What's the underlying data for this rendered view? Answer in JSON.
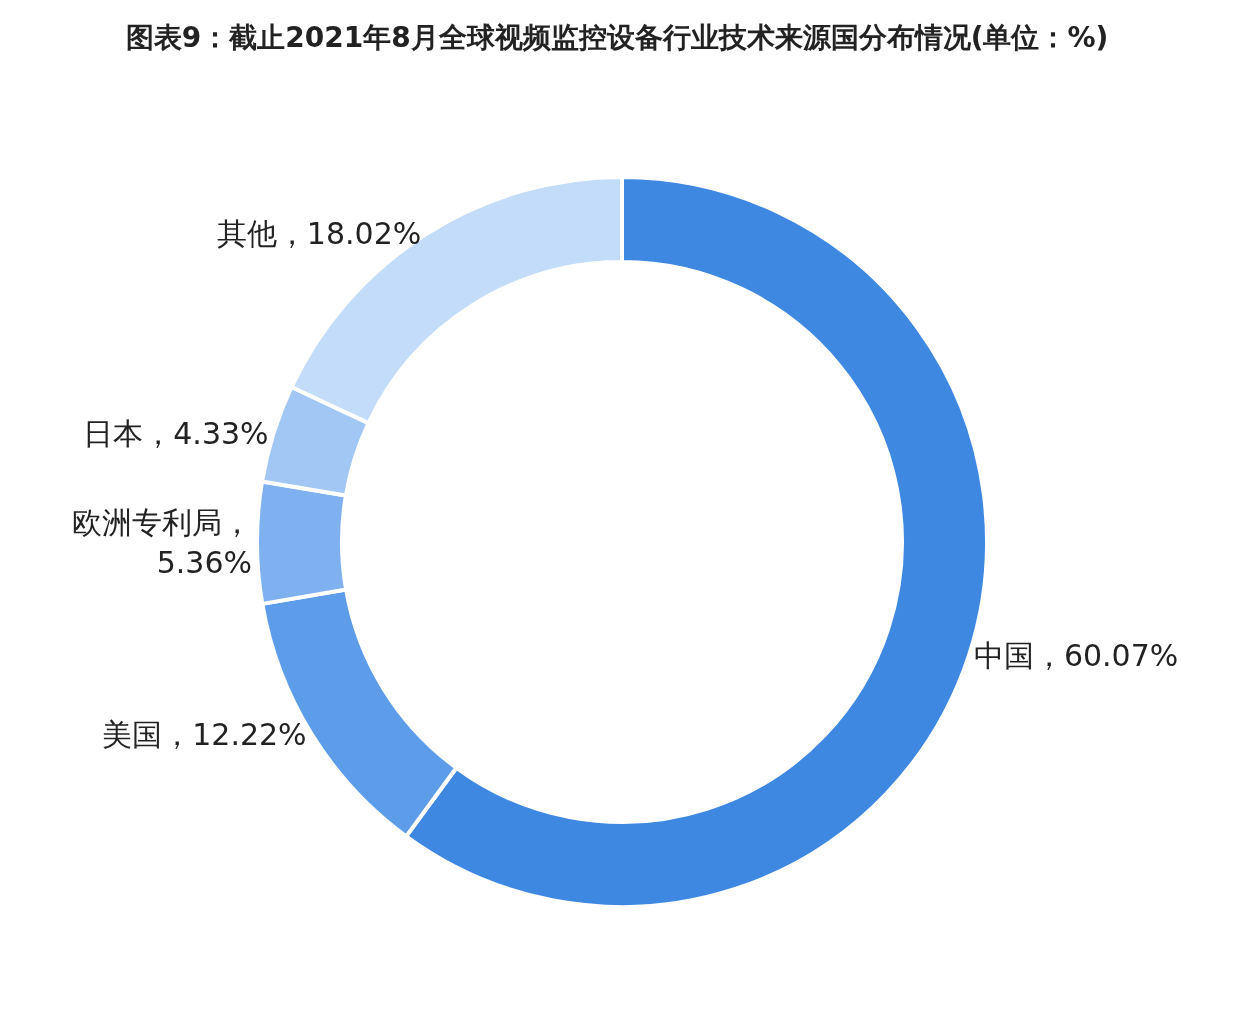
{
  "chart_data": {
    "type": "donut",
    "title": "图表9：截止2021年8月全球视频监控设备行业技术来源国分布情况(单位：%)",
    "categories": [
      "中国",
      "美国",
      "欧洲专利局",
      "日本",
      "其他"
    ],
    "values": [
      60.07,
      12.22,
      5.36,
      4.33,
      18.02
    ],
    "colors": [
      "#3f88e2",
      "#5d9ce9",
      "#7fb1f0",
      "#a2c7f4",
      "#c3dcf9"
    ],
    "value_labels": [
      "，60.07%",
      "，12.22%",
      "，5.36%",
      "，4.33%",
      "，18.02%"
    ],
    "legend": false
  }
}
